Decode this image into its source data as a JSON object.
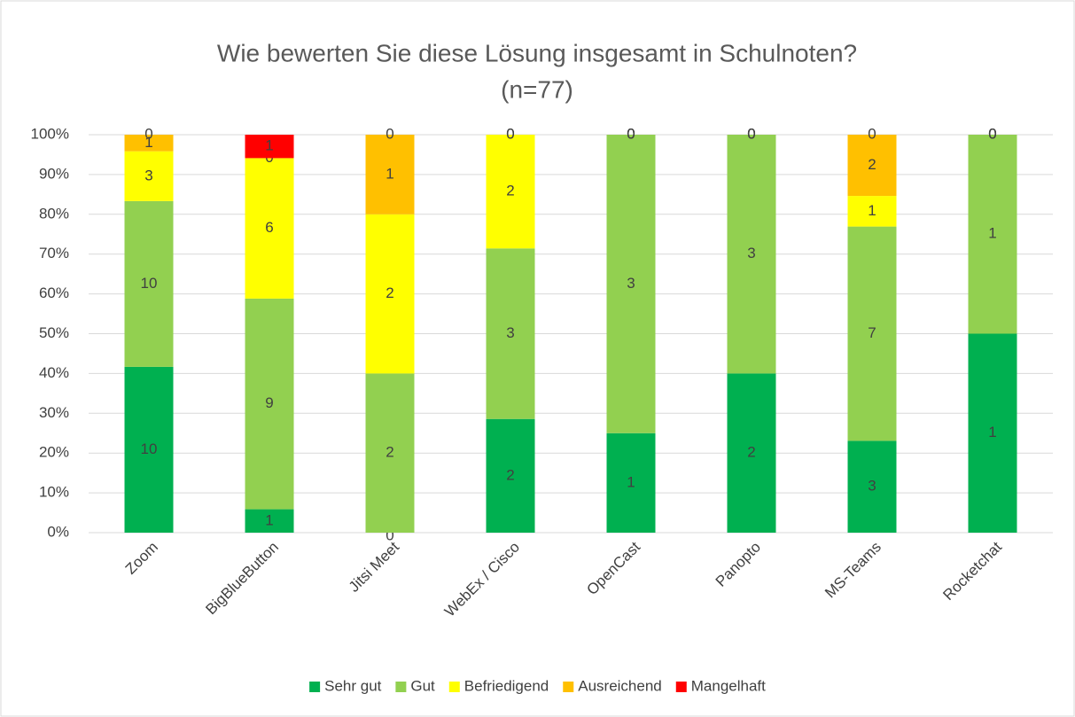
{
  "chart_data": {
    "type": "bar",
    "stacked": "percent",
    "title": "Wie bewerten Sie diese Lösung insgesamt in Schulnoten?",
    "subtitle": "(n=77)",
    "categories": [
      "Zoom",
      "BigBlueButton",
      "Jitsi Meet",
      "WebEx / Cisco",
      "OpenCast",
      "Panopto",
      "MS-Teams",
      "Rocketchat"
    ],
    "series": [
      {
        "name": "Sehr gut",
        "color": "#00b050",
        "values": [
          10,
          1,
          0,
          2,
          1,
          2,
          3,
          1
        ]
      },
      {
        "name": "Gut",
        "color": "#92d050",
        "values": [
          10,
          9,
          2,
          3,
          3,
          3,
          7,
          1
        ]
      },
      {
        "name": "Befriedigend",
        "color": "#ffff00",
        "values": [
          3,
          6,
          2,
          2,
          0,
          0,
          1,
          0
        ]
      },
      {
        "name": "Ausreichend",
        "color": "#ffc000",
        "values": [
          1,
          0,
          1,
          0,
          0,
          0,
          2,
          0
        ]
      },
      {
        "name": "Mangelhaft",
        "color": "#ff0000",
        "values": [
          0,
          1,
          0,
          0,
          0,
          0,
          0,
          0
        ]
      }
    ],
    "ylim": [
      0,
      100
    ],
    "yticks": [
      {
        "value": 0,
        "label": "0%"
      },
      {
        "value": 10,
        "label": "10%"
      },
      {
        "value": 20,
        "label": "20%"
      },
      {
        "value": 30,
        "label": "30%"
      },
      {
        "value": 40,
        "label": "40%"
      },
      {
        "value": 50,
        "label": "50%"
      },
      {
        "value": 60,
        "label": "60%"
      },
      {
        "value": 70,
        "label": "70%"
      },
      {
        "value": 80,
        "label": "80%"
      },
      {
        "value": 90,
        "label": "90%"
      },
      {
        "value": 100,
        "label": "100%"
      }
    ],
    "grid": true,
    "legend": "bottom"
  }
}
